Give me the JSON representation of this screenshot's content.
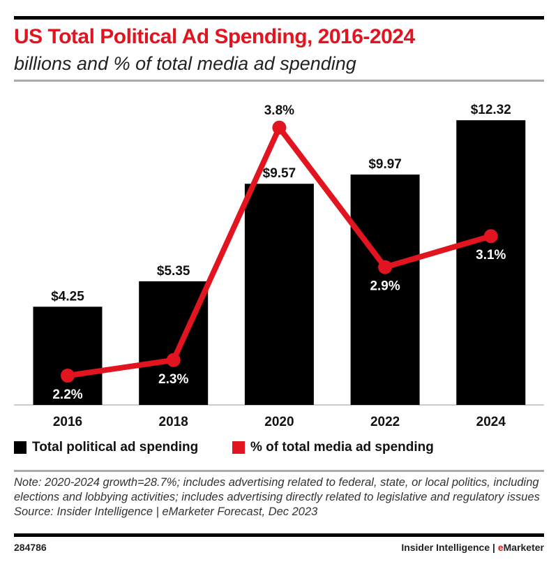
{
  "chart_data": {
    "type": "bar",
    "title": "US Total Political Ad Spending, 2016-2024",
    "subtitle": "billions and % of total media ad spending",
    "categories": [
      "2016",
      "2018",
      "2020",
      "2022",
      "2024"
    ],
    "series": [
      {
        "name": "Total political ad spending",
        "type": "bar",
        "color": "#000000",
        "values": [
          4.25,
          5.35,
          9.57,
          9.97,
          12.32
        ],
        "labels": [
          "$4.25",
          "$5.35",
          "$9.57",
          "$9.97",
          "$12.32"
        ]
      },
      {
        "name": "% of total media ad spending",
        "type": "line",
        "color": "#e1141f",
        "values": [
          2.2,
          2.3,
          3.8,
          2.9,
          3.1
        ],
        "labels": [
          "2.2%",
          "2.3%",
          "3.8%",
          "2.9%",
          "3.1%"
        ]
      }
    ],
    "xlabel": "",
    "ylabel": "",
    "legend_position": "bottom-left",
    "grid": false
  },
  "notes": {
    "note": "Note: 2020-2024 growth=28.7%; includes advertising related to federal, state, or local politics, including elections and lobbying activities; includes advertising directly related to legislative and regulatory issues",
    "source": "Source: Insider Intelligence | eMarketer Forecast, Dec 2023"
  },
  "footer": {
    "chart_id": "284786",
    "brand_prefix": "Insider Intelligence | ",
    "brand_e": "e",
    "brand_rest": "Marketer"
  }
}
